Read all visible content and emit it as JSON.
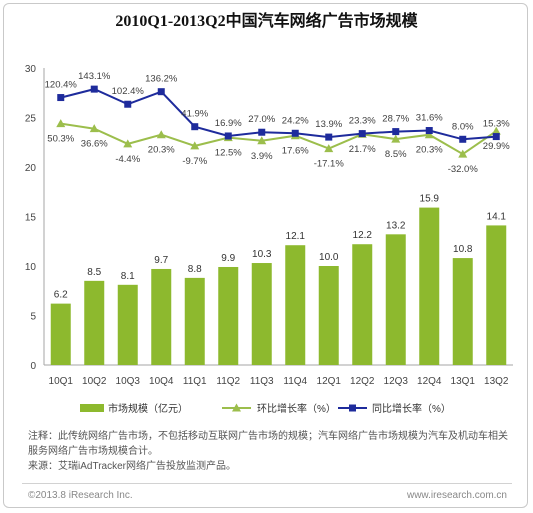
{
  "title": "2010Q1-2013Q2中国汽车网络广告市场规模",
  "chart_data": {
    "type": "bar",
    "categories": [
      "10Q1",
      "10Q2",
      "10Q3",
      "10Q4",
      "11Q1",
      "11Q2",
      "11Q3",
      "11Q4",
      "12Q1",
      "12Q2",
      "12Q3",
      "12Q4",
      "13Q1",
      "13Q2"
    ],
    "ylim": [
      0,
      30
    ],
    "yticks": [
      0,
      5,
      10,
      15,
      20,
      25,
      30
    ],
    "y2lim": [
      -600,
      200
    ],
    "y2_visible": false,
    "grid": false,
    "legend_position": "bottom",
    "series": [
      {
        "name": "市场规模（亿元）",
        "type": "bar",
        "color": "#8DB92E",
        "values": [
          6.2,
          8.5,
          8.1,
          9.7,
          8.8,
          9.9,
          10.3,
          12.1,
          10.0,
          12.2,
          13.2,
          15.9,
          10.8,
          14.1
        ],
        "labels": [
          "6.2",
          "8.5",
          "8.1",
          "9.7",
          "8.8",
          "9.9",
          "10.3",
          "12.1",
          "10.0",
          "12.2",
          "13.2",
          "15.9",
          "10.8",
          "14.1"
        ]
      },
      {
        "name": "环比增长率（%）",
        "type": "line",
        "axis": "secondary",
        "marker": "triangle",
        "color": "#9CBE4C",
        "values": [
          50.3,
          36.6,
          -4.4,
          20.3,
          -9.7,
          12.5,
          3.9,
          17.6,
          -17.1,
          21.7,
          8.5,
          20.3,
          -32.0,
          29.9
        ],
        "labels": [
          "50.3%",
          "36.6%",
          "-4.4%",
          "20.3%",
          "-9.7%",
          "12.5%",
          "3.9%",
          "17.6%",
          "-17.1%",
          "21.7%",
          "8.5%",
          "20.3%",
          "-32.0%",
          "29.9%"
        ]
      },
      {
        "name": "同比增长率（%）",
        "type": "line",
        "axis": "secondary",
        "marker": "square",
        "color": "#1E2B9C",
        "values": [
          120.4,
          143.1,
          102.4,
          136.2,
          41.9,
          16.9,
          27.0,
          24.2,
          13.9,
          23.3,
          28.7,
          31.6,
          8.0,
          15.3
        ],
        "labels": [
          "120.4%",
          "143.1%",
          "102.4%",
          "136.2%",
          "41.9%",
          "16.9%",
          "27.0%",
          "24.2%",
          "13.9%",
          "23.3%",
          "28.7%",
          "31.6%",
          "8.0%",
          "15.3%"
        ]
      }
    ]
  },
  "notes": {
    "note": "注释：此传统网络广告市场，不包括移动互联网广告市场的规模；汽车网络广告市场规模为汽车及机动车相关服务网络广告市场规模合计。",
    "source": "来源：艾瑞iAdTracker网络广告投放监测产品。"
  },
  "footer": {
    "copyright": "©2013.8 iResearch Inc.",
    "website": "www.iresearch.com.cn"
  }
}
